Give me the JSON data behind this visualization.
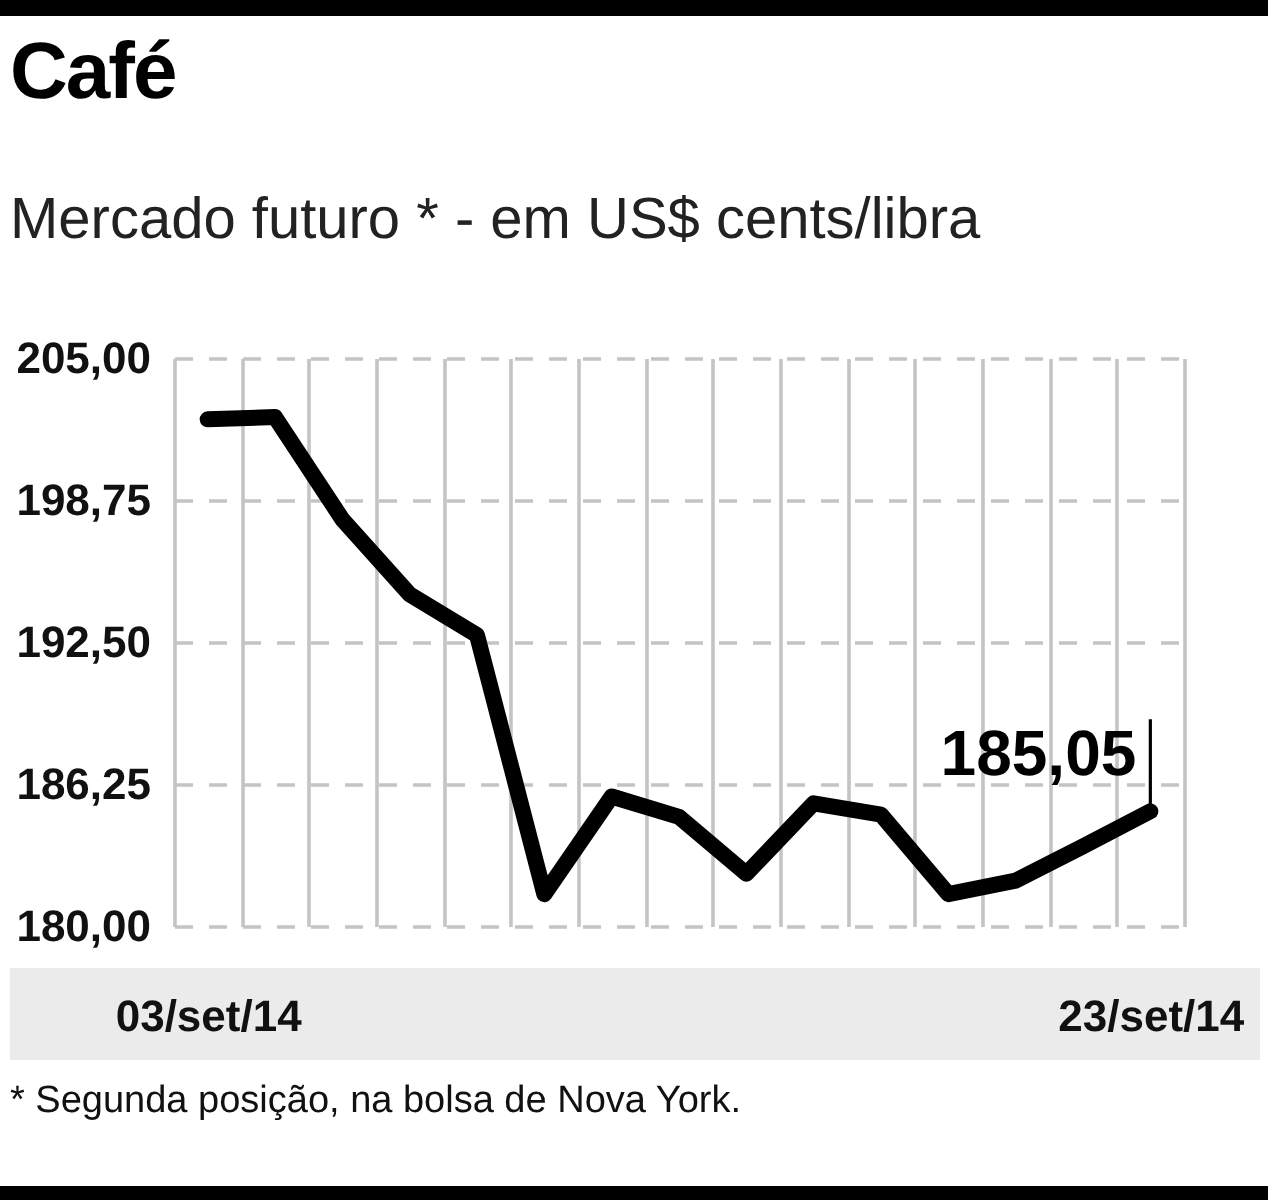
{
  "chart_data": {
    "type": "line",
    "title": "Café",
    "subtitle": "Mercado futuro * - em US$ cents/libra",
    "categories": [
      "03/set/14",
      null,
      null,
      null,
      null,
      null,
      null,
      null,
      null,
      null,
      null,
      null,
      null,
      null,
      "23/set/14"
    ],
    "values": [
      202.3,
      202.4,
      197.9,
      194.6,
      192.8,
      181.4,
      185.7,
      184.8,
      182.3,
      185.4,
      184.9,
      181.4,
      182.0,
      183.5,
      185.05
    ],
    "color": "#000000",
    "value_labels": [
      null,
      null,
      null,
      null,
      null,
      null,
      null,
      null,
      null,
      null,
      null,
      null,
      null,
      null,
      "185,05"
    ],
    "ylim": [
      180,
      205
    ],
    "yticks": [
      {
        "value": 180,
        "label": "180,00"
      },
      {
        "value": 186.25,
        "label": "186,25"
      },
      {
        "value": 192.5,
        "label": "192,50"
      },
      {
        "value": 198.75,
        "label": "198,75"
      },
      {
        "value": 205,
        "label": "205,00"
      }
    ],
    "grid": true,
    "annotations": [
      "* Segunda posição, na bolsa de Nova York."
    ]
  }
}
